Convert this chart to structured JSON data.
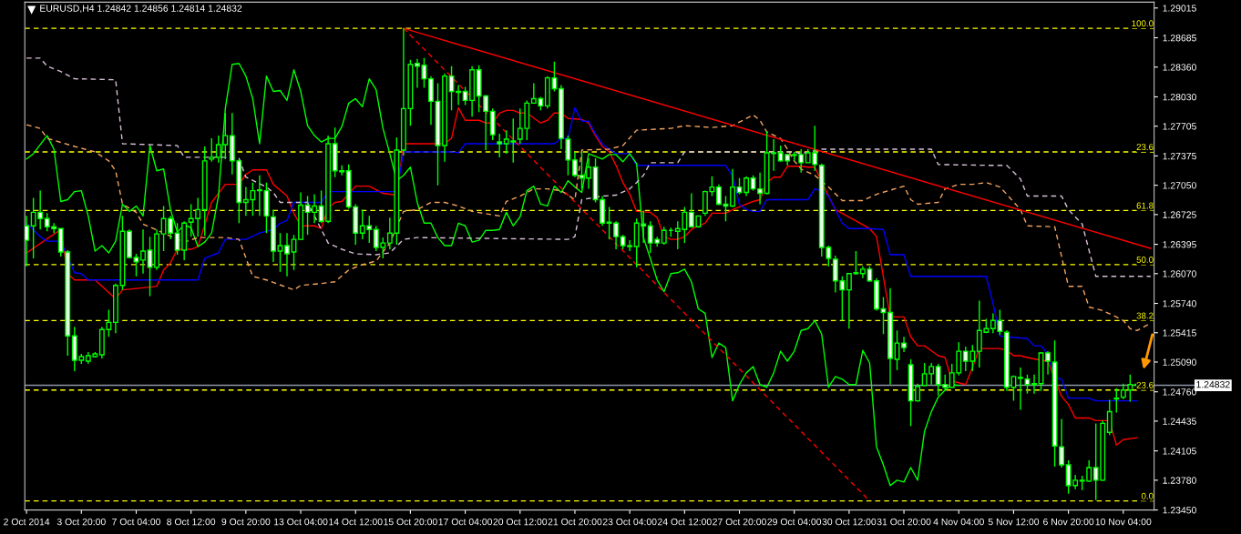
{
  "chart_data": {
    "type": "candlestick",
    "title": "EURUSD,H4 1.24842 1.24856 1.24814 1.24832",
    "color": "#00ff00",
    "ohlc": [
      [
        1.266,
        1.2671,
        1.2615,
        1.2644
      ],
      [
        1.266,
        1.2691,
        1.2624,
        1.2675
      ],
      [
        1.2675,
        1.2699,
        1.2656,
        1.2668
      ],
      [
        1.2668,
        1.2674,
        1.2654,
        1.2659
      ],
      [
        1.2659,
        1.2663,
        1.2652,
        1.2657
      ],
      [
        1.2657,
        1.2657,
        1.2626,
        1.2631
      ],
      [
        1.2631,
        1.2633,
        1.2516,
        1.2538
      ],
      [
        1.2538,
        1.2548,
        1.2499,
        1.2511
      ],
      [
        1.2511,
        1.2518,
        1.2507,
        1.2515
      ],
      [
        1.251,
        1.252,
        1.2507,
        1.2516
      ],
      [
        1.2515,
        1.252,
        1.2514,
        1.2518
      ],
      [
        1.2517,
        1.2548,
        1.2513,
        1.2545
      ],
      [
        1.2545,
        1.2567,
        1.2537,
        1.2553
      ],
      [
        1.2553,
        1.2596,
        1.2541,
        1.2594
      ],
      [
        1.2594,
        1.2671,
        1.2589,
        1.2654
      ],
      [
        1.2654,
        1.2656,
        1.2624,
        1.2625
      ],
      [
        1.2625,
        1.2629,
        1.2604,
        1.262
      ],
      [
        1.2622,
        1.2656,
        1.2607,
        1.2632
      ],
      [
        1.2633,
        1.2648,
        1.2582,
        1.2614
      ],
      [
        1.2614,
        1.2656,
        1.2611,
        1.2651
      ],
      [
        1.2651,
        1.2682,
        1.2632,
        1.2668
      ],
      [
        1.2668,
        1.2671,
        1.2645,
        1.2652
      ],
      [
        1.2652,
        1.2663,
        1.2628,
        1.2633
      ],
      [
        1.2633,
        1.2665,
        1.2622,
        1.2663
      ],
      [
        1.2664,
        1.2684,
        1.2648,
        1.2668
      ],
      [
        1.2668,
        1.2691,
        1.2648,
        1.2678
      ],
      [
        1.2678,
        1.2748,
        1.2649,
        1.2732
      ],
      [
        1.2734,
        1.2757,
        1.2731,
        1.2736
      ],
      [
        1.2736,
        1.276,
        1.273,
        1.275
      ],
      [
        1.275,
        1.2785,
        1.2734,
        1.276
      ],
      [
        1.276,
        1.2785,
        1.2717,
        1.2732
      ],
      [
        1.2732,
        1.2734,
        1.2663,
        1.2686
      ],
      [
        1.2686,
        1.2703,
        1.2671,
        1.2689
      ],
      [
        1.2689,
        1.2708,
        1.2671,
        1.2699
      ],
      [
        1.2699,
        1.2716,
        1.2671,
        1.27
      ],
      [
        1.2699,
        1.2708,
        1.2652,
        1.2671
      ],
      [
        1.267,
        1.2678,
        1.262,
        1.2632
      ],
      [
        1.2632,
        1.2652,
        1.2609,
        1.2638
      ],
      [
        1.2638,
        1.2652,
        1.2604,
        1.2629
      ],
      [
        1.2631,
        1.265,
        1.2611,
        1.2645
      ],
      [
        1.2645,
        1.2697,
        1.2644,
        1.2683
      ],
      [
        1.2683,
        1.2693,
        1.265,
        1.2675
      ],
      [
        1.2675,
        1.2695,
        1.2663,
        1.2682
      ],
      [
        1.2682,
        1.2699,
        1.2663,
        1.2665
      ],
      [
        1.2665,
        1.276,
        1.2663,
        1.2751
      ],
      [
        1.2751,
        1.2769,
        1.2714,
        1.2721
      ],
      [
        1.2721,
        1.2727,
        1.2716,
        1.272
      ],
      [
        1.2721,
        1.2728,
        1.2679,
        1.2681
      ],
      [
        1.2681,
        1.2684,
        1.2639,
        1.2652
      ],
      [
        1.2652,
        1.2678,
        1.2645,
        1.266
      ],
      [
        1.266,
        1.2671,
        1.2641,
        1.2656
      ],
      [
        1.2656,
        1.266,
        1.2632,
        1.2636
      ],
      [
        1.2636,
        1.2647,
        1.2624,
        1.2641
      ],
      [
        1.2641,
        1.2669,
        1.2634,
        1.2652
      ],
      [
        1.2652,
        1.2758,
        1.2639,
        1.2744
      ],
      [
        1.2744,
        1.2879,
        1.2738,
        1.279
      ],
      [
        1.279,
        1.2844,
        1.2771,
        1.2839
      ],
      [
        1.284,
        1.2845,
        1.2813,
        1.2837
      ],
      [
        1.2838,
        1.2846,
        1.2813,
        1.2823
      ],
      [
        1.2823,
        1.2826,
        1.2772,
        1.2798
      ],
      [
        1.2798,
        1.2818,
        1.2705,
        1.2749
      ],
      [
        1.2749,
        1.2829,
        1.2731,
        1.2826
      ],
      [
        1.2826,
        1.2837,
        1.2788,
        1.2809
      ],
      [
        1.2809,
        1.2816,
        1.2794,
        1.2808
      ],
      [
        1.2809,
        1.2814,
        1.2794,
        1.2799
      ],
      [
        1.2799,
        1.2837,
        1.2781,
        1.2833
      ],
      [
        1.2833,
        1.2838,
        1.2786,
        1.2804
      ],
      [
        1.2804,
        1.2805,
        1.2744,
        1.2787
      ],
      [
        1.2787,
        1.279,
        1.2755,
        1.2761
      ],
      [
        1.2753,
        1.2762,
        1.2736,
        1.2751
      ],
      [
        1.2751,
        1.2766,
        1.274,
        1.2756
      ],
      [
        1.2753,
        1.2779,
        1.273,
        1.2754
      ],
      [
        1.2756,
        1.279,
        1.2751,
        1.2768
      ],
      [
        1.2768,
        1.2799,
        1.2755,
        1.2796
      ],
      [
        1.2796,
        1.2818,
        1.2796,
        1.2801
      ],
      [
        1.2801,
        1.2803,
        1.2788,
        1.2793
      ],
      [
        1.2793,
        1.2826,
        1.279,
        1.2824
      ],
      [
        1.2824,
        1.2842,
        1.2809,
        1.2812
      ],
      [
        1.2812,
        1.2816,
        1.2745,
        1.2757
      ],
      [
        1.2756,
        1.276,
        1.2716,
        1.2733
      ],
      [
        1.2733,
        1.2742,
        1.2714,
        1.2716
      ],
      [
        1.2716,
        1.2742,
        1.2701,
        1.2713
      ],
      [
        1.2713,
        1.2735,
        1.2701,
        1.2725
      ],
      [
        1.2725,
        1.2735,
        1.2686,
        1.2689
      ],
      [
        1.2689,
        1.2693,
        1.266,
        1.2663
      ],
      [
        1.2664,
        1.2681,
        1.2645,
        1.2663
      ],
      [
        1.2663,
        1.2665,
        1.2634,
        1.2648
      ],
      [
        1.2648,
        1.265,
        1.2634,
        1.2638
      ],
      [
        1.2638,
        1.2644,
        1.2632,
        1.2637
      ],
      [
        1.2637,
        1.2668,
        1.2614,
        1.2663
      ],
      [
        1.2662,
        1.2677,
        1.2641,
        1.266
      ],
      [
        1.266,
        1.2665,
        1.263,
        1.2641
      ],
      [
        1.2645,
        1.2648,
        1.2637,
        1.2641
      ],
      [
        1.2641,
        1.2659,
        1.2639,
        1.2655
      ],
      [
        1.2655,
        1.2658,
        1.2648,
        1.2655
      ],
      [
        1.2654,
        1.2665,
        1.2634,
        1.2657
      ],
      [
        1.2656,
        1.2681,
        1.2641,
        1.2675
      ],
      [
        1.2675,
        1.2696,
        1.2658,
        1.2659
      ],
      [
        1.2659,
        1.2671,
        1.2658,
        1.2671
      ],
      [
        1.2674,
        1.2699,
        1.2671,
        1.2698
      ],
      [
        1.2698,
        1.2715,
        1.2693,
        1.2703
      ],
      [
        1.2703,
        1.2706,
        1.2683,
        1.2684
      ],
      [
        1.2684,
        1.2693,
        1.2665,
        1.2682
      ],
      [
        1.2682,
        1.2723,
        1.2681,
        1.2703
      ],
      [
        1.2703,
        1.2713,
        1.2695,
        1.2697
      ],
      [
        1.2697,
        1.2715,
        1.2693,
        1.2713
      ],
      [
        1.2713,
        1.2716,
        1.2699,
        1.2701
      ],
      [
        1.2701,
        1.2719,
        1.2684,
        1.2696
      ],
      [
        1.2696,
        1.2765,
        1.2695,
        1.2741
      ],
      [
        1.274,
        1.2756,
        1.2721,
        1.2741
      ],
      [
        1.2741,
        1.2749,
        1.2731,
        1.2732
      ],
      [
        1.2739,
        1.274,
        1.2727,
        1.2732
      ],
      [
        1.2739,
        1.2742,
        1.2732,
        1.2738
      ],
      [
        1.2739,
        1.2745,
        1.2719,
        1.273
      ],
      [
        1.273,
        1.2745,
        1.273,
        1.2741
      ],
      [
        1.2741,
        1.2771,
        1.2721,
        1.2728
      ],
      [
        1.2727,
        1.2729,
        1.2626,
        1.2636
      ],
      [
        1.2636,
        1.2638,
        1.2615,
        1.2624
      ],
      [
        1.2623,
        1.2627,
        1.2586,
        1.2599
      ],
      [
        1.2599,
        1.2604,
        1.2555,
        1.2589
      ],
      [
        1.2589,
        1.2607,
        1.2546,
        1.2607
      ],
      [
        1.2608,
        1.2632,
        1.2606,
        1.2607
      ],
      [
        1.2607,
        1.2615,
        1.2602,
        1.2612
      ],
      [
        1.2612,
        1.2615,
        1.2598,
        1.2599
      ],
      [
        1.2599,
        1.2602,
        1.2566,
        1.2568
      ],
      [
        1.2568,
        1.2581,
        1.254,
        1.2564
      ],
      [
        1.2564,
        1.2591,
        1.2484,
        1.2513
      ],
      [
        1.2512,
        1.2544,
        1.25,
        1.253
      ],
      [
        1.253,
        1.2537,
        1.252,
        1.2525
      ],
      [
        1.2506,
        1.2512,
        1.2438,
        1.2466
      ],
      [
        1.2466,
        1.2485,
        1.2465,
        1.2482
      ],
      [
        1.2483,
        1.2508,
        1.2483,
        1.2496
      ],
      [
        1.2496,
        1.2508,
        1.2484,
        1.2504
      ],
      [
        1.2504,
        1.2507,
        1.2472,
        1.2484
      ],
      [
        1.2484,
        1.2495,
        1.2477,
        1.2481
      ],
      [
        1.2481,
        1.2507,
        1.2481,
        1.2497
      ],
      [
        1.2497,
        1.2531,
        1.2494,
        1.2521
      ],
      [
        1.2521,
        1.2526,
        1.2499,
        1.251
      ],
      [
        1.251,
        1.2528,
        1.2499,
        1.2521
      ],
      [
        1.2521,
        1.2577,
        1.2503,
        1.2544
      ],
      [
        1.2542,
        1.2557,
        1.2541,
        1.2546
      ],
      [
        1.2546,
        1.2563,
        1.2541,
        1.2555
      ],
      [
        1.2555,
        1.2567,
        1.2539,
        1.2543
      ],
      [
        1.2542,
        1.2544,
        1.2477,
        1.2481
      ],
      [
        1.2481,
        1.2494,
        1.2466,
        1.2493
      ],
      [
        1.2492,
        1.2503,
        1.2456,
        1.2491
      ],
      [
        1.249,
        1.2495,
        1.2474,
        1.2484
      ],
      [
        1.2484,
        1.2495,
        1.2474,
        1.2485
      ],
      [
        1.2485,
        1.252,
        1.2477,
        1.2519
      ],
      [
        1.2519,
        1.2521,
        1.2495,
        1.251
      ],
      [
        1.2509,
        1.2533,
        1.2393,
        1.2416
      ],
      [
        1.2415,
        1.2446,
        1.2392,
        1.2395
      ],
      [
        1.2395,
        1.24,
        1.2363,
        1.2372
      ],
      [
        1.2372,
        1.2384,
        1.2368,
        1.2378
      ],
      [
        1.2377,
        1.2383,
        1.2367,
        1.2378
      ],
      [
        1.2377,
        1.24,
        1.2376,
        1.2392
      ],
      [
        1.2392,
        1.2441,
        1.2356,
        1.2378
      ],
      [
        1.2378,
        1.2444,
        1.2377,
        1.2441
      ],
      [
        1.2431,
        1.2467,
        1.2428,
        1.2454
      ],
      [
        1.2468,
        1.248,
        1.2453,
        1.2469
      ],
      [
        1.247,
        1.2485,
        1.2468,
        1.2478
      ],
      [
        1.2478,
        1.2495,
        1.2465,
        1.2484
      ],
      [
        1.24842,
        1.24856,
        1.24814,
        1.24832
      ],
      null,
      null
    ],
    "series": [
      {
        "type": "line",
        "color": "#ff0000",
        "line_style": "solid",
        "values": [
          1.263,
          null,
          null,
          null,
          null,
          1.2656,
          1.2607,
          1.26,
          1.26,
          1.26,
          1.26,
          null,
          null,
          1.2579,
          1.2589,
          null,
          null,
          null,
          1.2592,
          1.2593,
          1.2611,
          1.2619,
          1.2634,
          1.2634,
          1.2634,
          1.2637,
          1.2661,
          1.2686,
          null,
          1.2706,
          1.2706,
          1.2706,
          1.2717,
          1.2722,
          1.2722,
          1.2722,
          1.2706,
          null,
          1.2693,
          1.2674,
          1.266,
          1.266,
          1.266,
          1.2657,
          1.268,
          1.2686,
          1.2687,
          null,
          1.2704,
          1.2704,
          1.2704,
          null,
          1.2696,
          null,
          1.2694,
          1.2751,
          1.2751,
          1.2751,
          1.2751,
          1.2751,
          1.2751,
          1.2751,
          1.2757,
          1.2791,
          1.2777,
          1.2777,
          1.2777,
          1.2774,
          1.2774,
          1.2785,
          1.2788,
          1.2788,
          1.2785,
          1.2785,
          null,
          1.2774,
          1.2777,
          1.2785,
          1.2785,
          1.2779,
          null,
          1.2778,
          1.2774,
          1.276,
          1.2748,
          1.2742,
          1.2727,
          1.2708,
          1.2695,
          1.2676,
          null,
          1.2675,
          1.2669,
          1.2648,
          1.2645,
          1.2645,
          1.2648,
          1.2656,
          1.266,
          1.2663,
          1.2674,
          1.2674,
          1.2674,
          1.2678,
          null,
          1.2684,
          1.2687,
          1.2689,
          1.2708,
          1.2714,
          1.2714,
          1.2726,
          1.2726,
          1.2726,
          1.2725,
          1.2725,
          null,
          1.2693,
          1.2678,
          null,
          null,
          null,
          null,
          1.2657,
          1.2648,
          null,
          1.2559,
          1.2559,
          1.2559,
          1.2537,
          1.2527,
          1.2527,
          null,
          1.2516,
          1.2514,
          1.2488,
          null,
          1.2484,
          1.2503,
          1.2524,
          1.2524,
          1.2524,
          1.2524,
          1.2522,
          1.2516,
          1.2516,
          1.2514,
          null,
          1.2511,
          1.251,
          null,
          1.2471,
          1.2462,
          1.2447,
          1.2447,
          1.2447,
          1.2444,
          1.2444,
          1.2444,
          1.2417,
          1.2423,
          null,
          1.2425,
          null,
          null
        ]
      },
      {
        "type": "line",
        "color": "#0000ff",
        "line_style": "solid",
        "values": [
          1.2663,
          null,
          1.2648,
          1.2643,
          1.2643,
          1.2643,
          null,
          1.2608,
          1.2607,
          1.26,
          1.26,
          1.26,
          1.26,
          1.26,
          1.26,
          1.26,
          1.26,
          1.26,
          1.26,
          1.26,
          1.26,
          1.26,
          1.26,
          1.26,
          1.26,
          1.26,
          1.2624,
          null,
          1.263,
          1.2645,
          1.2645,
          1.2645,
          1.2645,
          null,
          1.2652,
          null,
          1.2656,
          1.2663,
          1.2666,
          1.2686,
          1.2686,
          1.2686,
          1.2686,
          1.2686,
          1.2698,
          1.2698,
          1.2698,
          1.2698,
          1.2698,
          1.2698,
          1.2698,
          1.2698,
          1.2698,
          1.2698,
          1.2698,
          1.2742,
          1.2742,
          1.2742,
          1.2742,
          1.2742,
          1.2742,
          1.2742,
          1.2742,
          1.2741,
          1.2751,
          1.2751,
          1.2751,
          1.2751,
          1.2751,
          1.2751,
          1.2751,
          1.2751,
          1.2751,
          1.2751,
          1.2751,
          1.2751,
          1.2751,
          1.2751,
          1.2757,
          1.2757,
          1.2791,
          1.2776,
          1.2776,
          1.2762,
          1.2751,
          1.2745,
          1.274,
          1.274,
          1.274,
          1.2727,
          1.2727,
          1.2727,
          1.2727,
          1.2727,
          1.2727,
          1.2727,
          1.2727,
          1.2727,
          1.2727,
          1.2727,
          1.2727,
          1.2727,
          1.2727,
          1.2715,
          1.2684,
          1.2678,
          1.2676,
          1.2676,
          1.2689,
          1.2689,
          1.2689,
          1.2689,
          1.2689,
          1.2689,
          1.2689,
          1.2701,
          1.2699,
          1.2693,
          1.2678,
          1.2663,
          1.2657,
          1.2657,
          1.2657,
          1.2657,
          null,
          1.2656,
          1.2628,
          1.2628,
          1.2628,
          1.2604,
          1.2604,
          1.2604,
          1.2604,
          1.2604,
          1.2604,
          1.2604,
          1.2604,
          1.2604,
          1.2604,
          1.2604,
          1.2604,
          1.2574,
          1.2538,
          1.2537,
          null,
          null,
          1.2535,
          1.2527,
          1.2527,
          1.2518,
          1.2492,
          1.249,
          1.2469,
          1.2469,
          1.2469,
          1.2469,
          1.2466,
          1.2466,
          1.2466,
          1.2466,
          1.2466,
          1.2466,
          1.2466,
          null,
          null
        ]
      },
      {
        "type": "line",
        "color": "#00ff00",
        "line_style": "solid",
        "values": [
          1.2734,
          1.274,
          null,
          1.276,
          1.2745,
          1.2687,
          1.2689,
          1.2698,
          1.2699,
          1.2671,
          1.2632,
          1.2638,
          1.263,
          1.2643,
          1.2684,
          1.2676,
          1.2682,
          1.2671,
          1.2749,
          1.2721,
          1.2723,
          1.2678,
          1.2653,
          1.2661,
          1.2658,
          1.2637,
          1.2642,
          1.2652,
          1.2693,
          1.279,
          1.2839,
          1.284,
          1.2826,
          1.2801,
          1.2751,
          1.2826,
          1.2809,
          1.281,
          1.2799,
          1.2833,
          1.2809,
          1.2771,
          1.276,
          1.2753,
          1.2757,
          1.2757,
          1.277,
          1.2796,
          1.2801,
          1.2792,
          1.2823,
          1.2811,
          1.2768,
          1.274,
          1.271,
          1.2716,
          1.2725,
          1.2686,
          1.2663,
          1.2663,
          1.2647,
          1.2638,
          1.2638,
          1.2663,
          1.266,
          1.2642,
          1.2644,
          1.2655,
          1.2655,
          1.2656,
          1.2675,
          1.266,
          1.267,
          1.2699,
          1.2704,
          1.2684,
          1.2682,
          1.2704,
          1.2697,
          1.271,
          1.2703,
          1.2697,
          1.274,
          1.2737,
          1.2734,
          1.2739,
          1.2739,
          1.2731,
          1.274,
          1.2729,
          1.2647,
          1.2624,
          1.26,
          1.2587,
          1.2607,
          1.2608,
          1.2612,
          1.2598,
          1.2568,
          1.2563,
          1.2514,
          1.253,
          1.2525,
          1.2466,
          1.2484,
          1.2497,
          1.2504,
          1.2484,
          1.2481,
          1.2497,
          1.2521,
          1.251,
          1.2521,
          1.2544,
          1.2546,
          1.2555,
          1.254,
          1.2481,
          1.2493,
          1.249,
          1.2484,
          1.2484,
          1.2522,
          1.2508,
          1.2415,
          1.2395,
          1.2372,
          1.2378,
          1.2376,
          1.2392,
          1.2378,
          1.2432,
          1.2454,
          1.247,
          1.2478,
          1.2484,
          1.2483,
          null,
          null,
          null,
          null,
          null,
          null,
          null,
          null,
          null,
          null,
          null,
          null,
          null,
          null,
          null,
          null,
          null,
          null,
          null,
          null,
          null,
          null,
          null,
          null,
          null,
          null,
          null,
          null
        ]
      },
      {
        "type": "line",
        "color": "#f4a460",
        "line_style": "dashed",
        "values": [
          1.2772,
          null,
          1.2768,
          1.2757,
          null,
          null,
          null,
          1.2748,
          null,
          null,
          1.2742,
          null,
          1.2732,
          1.2721,
          1.2684,
          null,
          1.2675,
          1.2662,
          null,
          null,
          null,
          null,
          null,
          1.2642,
          null,
          1.2647,
          null,
          null,
          null,
          1.2647,
          null,
          1.2645,
          null,
          1.2604,
          null,
          1.26,
          null,
          null,
          null,
          1.2589,
          1.2594,
          null,
          null,
          1.2596,
          null,
          1.2598,
          null,
          1.2611,
          null,
          1.2617,
          null,
          1.2621,
          null,
          1.2641,
          null,
          1.2676,
          null,
          1.2678,
          null,
          1.2686,
          null,
          1.2686,
          null,
          1.2682,
          null,
          1.2676,
          null,
          null,
          null,
          1.2671,
          1.2687,
          null,
          1.2693,
          null,
          1.2701,
          null,
          1.2701,
          null,
          1.2699,
          null,
          1.2689,
          1.2744,
          null,
          null,
          null,
          1.2745,
          null,
          1.2749,
          null,
          1.2766,
          null,
          null,
          null,
          null,
          1.2768,
          null,
          1.2771,
          null,
          null,
          null,
          1.2769,
          null,
          null,
          1.2771,
          null,
          null,
          1.2783,
          1.2777,
          1.2764,
          null,
          1.2757,
          1.2745,
          1.2732,
          1.2723,
          null,
          1.2716,
          null,
          1.2703,
          null,
          1.2688,
          null,
          null,
          1.2688,
          null,
          1.2695,
          null,
          null,
          null,
          1.2704,
          1.2689,
          1.2684,
          null,
          null,
          1.2686,
          1.2701,
          null,
          1.2706,
          null,
          1.2706,
          null,
          1.2708,
          null,
          1.2703,
          1.2695,
          null,
          1.2678,
          1.266,
          null,
          null,
          null,
          1.2659,
          1.2626,
          1.2593,
          null,
          1.2593,
          1.257,
          null,
          1.2566,
          null,
          1.2559,
          1.2555,
          1.2546,
          1.2544,
          null,
          1.2552
        ]
      },
      {
        "type": "line",
        "color": "#d8bfd8",
        "line_style": "dashed",
        "values": [
          1.2846,
          null,
          1.2846,
          1.2837,
          null,
          1.2831,
          null,
          1.2823,
          null,
          null,
          null,
          null,
          null,
          1.2822,
          1.2751,
          null,
          null,
          null,
          null,
          null,
          null,
          null,
          1.2749,
          1.2736,
          null,
          null,
          null,
          null,
          null,
          1.2736,
          null,
          1.2735,
          1.2714,
          null,
          null,
          1.2703,
          1.2697,
          1.2686,
          null,
          null,
          null,
          1.2686,
          null,
          null,
          1.2641,
          null,
          1.2634,
          null,
          1.2629,
          null,
          null,
          1.2628,
          null,
          1.263,
          null,
          1.2645,
          null,
          1.2647,
          null,
          null,
          null,
          null,
          null,
          null,
          null,
          null,
          null,
          null,
          null,
          null,
          null,
          null,
          null,
          null,
          null,
          null,
          null,
          null,
          null,
          1.2645,
          1.2648,
          1.2689,
          null,
          null,
          1.2693,
          null,
          1.2694,
          null,
          1.2701,
          1.2708,
          1.2716,
          1.273,
          null,
          null,
          null,
          1.273,
          1.2742,
          null,
          null,
          null,
          null,
          null,
          null,
          null,
          null,
          null,
          null,
          null,
          null,
          null,
          null,
          null,
          1.2742,
          1.274,
          null,
          null,
          1.2745,
          null,
          null,
          null,
          null,
          null,
          null,
          null,
          null,
          null,
          null,
          null,
          null,
          null,
          null,
          null,
          1.2745,
          1.2728,
          null,
          null,
          null,
          null,
          null,
          null,
          null,
          1.2727,
          null,
          1.2727,
          null,
          1.2712,
          1.2693,
          null,
          null,
          null,
          null,
          1.2693,
          1.2678,
          null,
          1.2662,
          null,
          1.2604,
          null,
          null,
          null,
          null,
          null,
          null,
          null,
          1.2604
        ]
      },
      {
        "type": "line",
        "color": "#ff0000",
        "line_style": "solid",
        "values": [
          null,
          null,
          null,
          null,
          null,
          null,
          null,
          null,
          null,
          null,
          null,
          null,
          null,
          null,
          null,
          null,
          null,
          null,
          null,
          null,
          null,
          null,
          null,
          null,
          null,
          null,
          null,
          null,
          null,
          null,
          null,
          null,
          null,
          null,
          null,
          null,
          null,
          null,
          null,
          null,
          null,
          null,
          null,
          null,
          null,
          null,
          null,
          null,
          null,
          null,
          null,
          null,
          null,
          null,
          null,
          1.2879,
          null,
          null,
          null,
          null,
          null,
          null,
          null,
          null,
          null,
          null,
          null,
          null,
          null,
          null,
          null,
          null,
          null,
          null,
          null,
          null,
          null,
          null,
          null,
          null,
          null,
          null,
          null,
          null,
          null,
          null,
          null,
          null,
          null,
          null,
          null,
          null,
          null,
          null,
          null,
          null,
          null,
          null,
          null,
          null,
          null,
          null,
          null,
          null,
          null,
          null,
          null,
          null,
          null,
          null,
          null,
          null,
          null,
          null,
          null,
          null,
          null,
          null,
          null,
          null,
          null,
          null,
          null,
          null,
          null,
          null,
          null,
          null,
          null,
          null,
          null,
          null,
          null,
          null,
          null,
          null,
          null,
          null,
          null,
          null,
          null,
          null,
          null,
          null,
          null,
          null,
          null,
          null,
          null,
          null,
          null,
          null,
          null,
          null,
          null,
          null,
          null,
          null,
          null,
          null,
          null,
          null,
          null,
          null,
          1.2635
        ]
      },
      {
        "type": "line",
        "color": "#ff0000",
        "line_style": "dashed",
        "values": [
          null,
          null,
          null,
          null,
          null,
          null,
          null,
          null,
          null,
          null,
          null,
          null,
          null,
          null,
          null,
          null,
          null,
          null,
          null,
          null,
          null,
          null,
          null,
          null,
          null,
          null,
          null,
          null,
          null,
          null,
          null,
          null,
          null,
          null,
          null,
          null,
          null,
          null,
          null,
          null,
          null,
          null,
          null,
          null,
          null,
          null,
          null,
          null,
          null,
          null,
          null,
          null,
          null,
          null,
          null,
          1.2879,
          null,
          null,
          null,
          null,
          null,
          null,
          null,
          null,
          null,
          null,
          null,
          null,
          null,
          null,
          null,
          null,
          null,
          null,
          null,
          null,
          null,
          null,
          null,
          null,
          null,
          null,
          null,
          null,
          null,
          null,
          null,
          null,
          null,
          null,
          null,
          null,
          null,
          null,
          null,
          null,
          null,
          null,
          null,
          null,
          null,
          null,
          null,
          null,
          null,
          null,
          null,
          null,
          null,
          null,
          null,
          null,
          null,
          null,
          null,
          null,
          null,
          null,
          null,
          null,
          null,
          null,
          null,
          1.2355,
          null,
          null,
          null,
          null,
          null,
          null,
          null,
          null,
          null,
          null,
          null,
          null,
          null,
          null,
          null,
          null,
          null,
          null,
          null,
          null,
          null,
          null,
          null,
          null,
          null,
          null,
          null,
          null,
          null,
          null,
          null,
          null,
          null,
          null,
          null,
          null,
          null,
          null,
          null,
          null,
          null
        ]
      }
    ],
    "ref_lines": [
      {
        "axis": "y",
        "value": 1.2879,
        "color": "#ffff00",
        "line_style": "dashed"
      },
      {
        "axis": "y",
        "value": 1.2742,
        "color": "#ffff00",
        "line_style": "dashed"
      },
      {
        "axis": "y",
        "value": 1.2677,
        "color": "#ffff00",
        "line_style": "dashed"
      },
      {
        "axis": "y",
        "value": 1.2617,
        "color": "#ffff00",
        "line_style": "dashed"
      },
      {
        "axis": "y",
        "value": 1.2555,
        "color": "#ffff00",
        "line_style": "dashed"
      },
      {
        "axis": "y",
        "value": 1.2478,
        "color": "#ffff00",
        "line_style": "dashed"
      },
      {
        "axis": "y",
        "value": 1.2355,
        "color": "#ffff00",
        "line_style": "dashed"
      },
      {
        "axis": "y",
        "value": 1.24832,
        "label": "1.24832",
        "color": "#8c96a8",
        "line_style": "solid"
      }
    ],
    "annotations": [
      {
        "text": "100.0",
        "y": 1.2879
      },
      {
        "text": "23.6",
        "y": 1.2742
      },
      {
        "text": "61.8",
        "y": 1.2677
      },
      {
        "text": "50.0",
        "y": 1.2617
      },
      {
        "text": "38.2",
        "y": 1.2555
      },
      {
        "text": "23.6",
        "y": 1.2478
      },
      {
        "text": "0.0",
        "y": 1.2355
      }
    ],
    "ylim": [
      1.2345,
      1.2908
    ],
    "categories": [
      "2 Oct 2014",
      null,
      null,
      null,
      null,
      null,
      null,
      null,
      "3 Oct 20:00",
      null,
      null,
      null,
      null,
      null,
      null,
      null,
      "7 Oct 04:00",
      null,
      null,
      null,
      null,
      null,
      null,
      null,
      "8 Oct 12:00",
      null,
      null,
      null,
      null,
      null,
      null,
      null,
      "9 Oct 20:00",
      null,
      null,
      null,
      null,
      null,
      null,
      null,
      "13 Oct 04:00",
      null,
      null,
      null,
      null,
      null,
      null,
      null,
      "14 Oct 12:00",
      null,
      null,
      null,
      null,
      null,
      null,
      null,
      "15 Oct 20:00",
      null,
      null,
      null,
      null,
      null,
      null,
      null,
      "17 Oct 04:00",
      null,
      null,
      null,
      null,
      null,
      null,
      null,
      "20 Oct 12:00",
      null,
      null,
      null,
      null,
      null,
      null,
      null,
      "21 Oct 20:00",
      null,
      null,
      null,
      null,
      null,
      null,
      null,
      "23 Oct 04:00",
      null,
      null,
      null,
      null,
      null,
      null,
      null,
      "24 Oct 12:00",
      null,
      null,
      null,
      null,
      null,
      null,
      null,
      "27 Oct 20:00",
      null,
      null,
      null,
      null,
      null,
      null,
      null,
      "29 Oct 04:00",
      null,
      null,
      null,
      null,
      null,
      null,
      null,
      "30 Oct 12:00",
      null,
      null,
      null,
      null,
      null,
      null,
      null,
      "31 Oct 20:00",
      null,
      null,
      null,
      null,
      null,
      null,
      null,
      "4 Nov 04:00",
      null,
      null,
      null,
      null,
      null,
      null,
      null,
      "5 Nov 12:00",
      null,
      null,
      null,
      null,
      null,
      null,
      null,
      "6 Nov 20:00",
      null,
      null,
      null,
      null,
      null,
      null,
      null,
      "10 Nov 04:00",
      null,
      null,
      null,
      null
    ],
    "yticks": [
      {
        "value": 1.2345,
        "label": "1.23450"
      },
      {
        "value": 1.2378,
        "label": "1.23780"
      },
      1.24105,
      1.24435,
      {
        "value": 1.2476,
        "label": "1.24760"
      },
      {
        "value": 1.2509,
        "label": "1.25090"
      },
      1.25415,
      {
        "value": 1.2574,
        "label": "1.25740"
      },
      {
        "value": 1.2607,
        "label": "1.26070"
      },
      1.26395,
      1.26725,
      {
        "value": 1.2705,
        "label": "1.27050"
      },
      1.27375,
      1.27705,
      {
        "value": 1.2803,
        "label": "1.28030"
      },
      {
        "value": 1.2836,
        "label": "1.28360"
      },
      1.28685,
      1.29015
    ],
    "grid": false,
    "legend": false
  }
}
